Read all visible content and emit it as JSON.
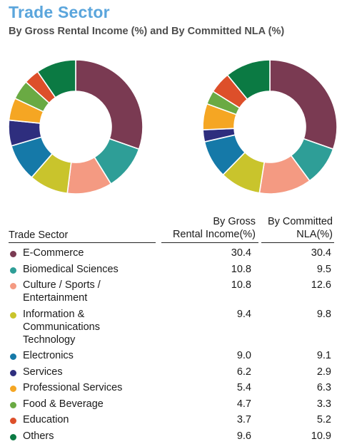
{
  "header": {
    "title": "Trade Sector",
    "subtitle": "By Gross Rental Income (%) and By Committed NLA (%)"
  },
  "table": {
    "col_sector": "Trade Sector",
    "col_gri_line1": "By Gross",
    "col_gri_line2": "Rental Income(%)",
    "col_nla_line1": "By Committed",
    "col_nla_line2": "NLA(%)"
  },
  "chart_data": {
    "type": "pie",
    "donut": true,
    "categories": [
      "E-Commerce",
      "Biomedical Sciences",
      "Culture / Sports / Entertainment",
      "Information & Communications Technology",
      "Electronics",
      "Services",
      "Professional Services",
      "Food & Beverage",
      "Education",
      "Others"
    ],
    "labels_display": [
      "E-Commerce",
      "Biomedical Sciences",
      "Culture / Sports /\nEntertainment",
      "Information &\nCommunications\nTechnology",
      "Electronics",
      "Services",
      "Professional Services",
      "Food & Beverage",
      "Education",
      "Others"
    ],
    "colors": [
      "#7a3a52",
      "#2e9e97",
      "#f49a82",
      "#c9c42c",
      "#1579a8",
      "#2e2e7e",
      "#f5a623",
      "#6aaa43",
      "#dd4f2a",
      "#0b7a43"
    ],
    "series": [
      {
        "key": "gri",
        "values": [
          30.4,
          10.8,
          10.8,
          9.4,
          9.0,
          6.2,
          5.4,
          4.7,
          3.7,
          9.6
        ],
        "display": [
          "30.4",
          "10.8",
          "10.8",
          "9.4",
          "9.0",
          "6.2",
          "5.4",
          "4.7",
          "3.7",
          "9.6"
        ]
      },
      {
        "key": "nla",
        "values": [
          30.4,
          9.5,
          12.6,
          9.8,
          9.1,
          2.9,
          6.3,
          3.3,
          5.2,
          10.9
        ],
        "display": [
          "30.4",
          "9.5",
          "12.6",
          "9.8",
          "9.1",
          "2.9",
          "6.3",
          "3.3",
          "5.2",
          "10.9"
        ]
      }
    ]
  }
}
